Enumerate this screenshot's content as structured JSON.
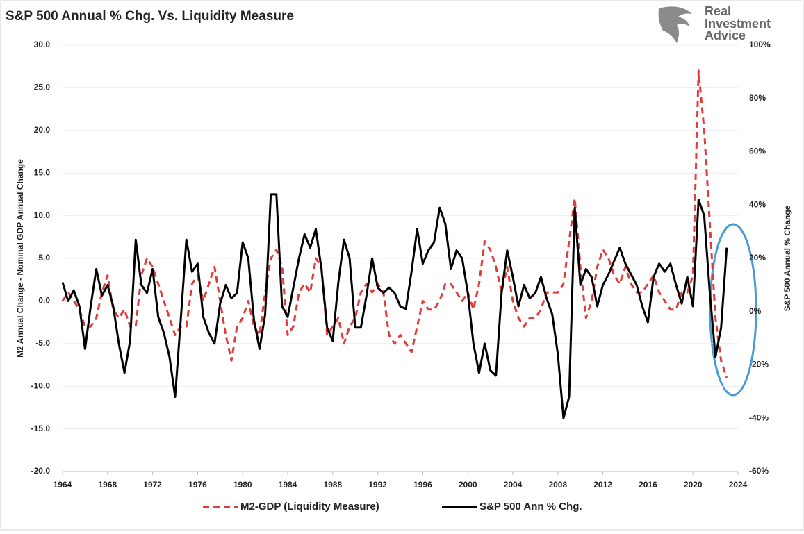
{
  "chart_data": {
    "type": "line",
    "title": "S&P 500 Annual % Chg. Vs. Liquidity Measure",
    "logo": [
      "Real",
      "Investment",
      "Advice"
    ],
    "y_label": "M2 Annual Change - Nominal GDP Annual Change",
    "y2_label": "S&P 500 Annual % Change",
    "x": [
      1964,
      1964.5,
      1965,
      1965.5,
      1966,
      1966.5,
      1967,
      1967.5,
      1968,
      1968.5,
      1969,
      1969.5,
      1970,
      1970.5,
      1971,
      1971.5,
      1972,
      1972.5,
      1973,
      1973.5,
      1974,
      1974.5,
      1975,
      1975.5,
      1976,
      1976.5,
      1977,
      1977.5,
      1978,
      1978.5,
      1979,
      1979.5,
      1980,
      1980.5,
      1981,
      1981.5,
      1982,
      1982.5,
      1983,
      1983.5,
      1984,
      1984.5,
      1985,
      1985.5,
      1986,
      1986.5,
      1987,
      1987.5,
      1988,
      1988.5,
      1989,
      1989.5,
      1990,
      1990.5,
      1991,
      1991.5,
      1992,
      1992.5,
      1993,
      1993.5,
      1994,
      1994.5,
      1995,
      1995.5,
      1996,
      1996.5,
      1997,
      1997.5,
      1998,
      1998.5,
      1999,
      1999.5,
      2000,
      2000.5,
      2001,
      2001.5,
      2002,
      2002.5,
      2003,
      2003.5,
      2004,
      2004.5,
      2005,
      2005.5,
      2006,
      2006.5,
      2007,
      2007.5,
      2008,
      2008.5,
      2009,
      2009.5,
      2010,
      2010.5,
      2011,
      2011.5,
      2012,
      2012.5,
      2013,
      2013.5,
      2014,
      2014.5,
      2015,
      2015.5,
      2016,
      2016.5,
      2017,
      2017.5,
      2018,
      2018.5,
      2019,
      2019.5,
      2020,
      2020.5,
      2021,
      2021.5,
      2022,
      2022.5,
      2023
    ],
    "xlim": [
      1964,
      2024
    ],
    "xticks": [
      1964,
      1968,
      1972,
      1976,
      1980,
      1984,
      1988,
      1992,
      1996,
      2000,
      2004,
      2008,
      2012,
      2016,
      2020,
      2024
    ],
    "ylim": [
      -20,
      30
    ],
    "yticks": [
      {
        "value": -20,
        "label": "-20.0"
      },
      {
        "value": -15,
        "label": "-15.0"
      },
      {
        "value": -10,
        "label": "-10.0"
      },
      {
        "value": -5,
        "label": "-5.0"
      },
      {
        "value": 0,
        "label": "0.0"
      },
      {
        "value": 5,
        "label": "5.0"
      },
      {
        "value": 10,
        "label": "10.0"
      },
      {
        "value": 15,
        "label": "15.0"
      },
      {
        "value": 20,
        "label": "20.0"
      },
      {
        "value": 25,
        "label": "25.0"
      },
      {
        "value": 30,
        "label": "30.0"
      }
    ],
    "y2lim": [
      -60,
      100
    ],
    "y2ticks": [
      {
        "value": -60,
        "label": "-60%"
      },
      {
        "value": -40,
        "label": "-40%"
      },
      {
        "value": -20,
        "label": "-20%"
      },
      {
        "value": 0,
        "label": "0%"
      },
      {
        "value": 20,
        "label": "20%"
      },
      {
        "value": 40,
        "label": "40%"
      },
      {
        "value": 60,
        "label": "60%"
      },
      {
        "value": 80,
        "label": "80%"
      },
      {
        "value": 100,
        "label": "100%"
      }
    ],
    "grid": true,
    "series": [
      {
        "name": "M2-GDP (Liquidity Measure)",
        "color": "#e03c3c",
        "dashed": true,
        "values": [
          0,
          1,
          0,
          -1,
          -3,
          -3,
          -2,
          1,
          3,
          -1,
          -2,
          -1,
          -3,
          -3,
          3,
          5,
          4,
          2,
          0,
          -2,
          -4,
          -3,
          -3,
          2,
          3,
          0,
          2,
          4,
          0,
          -4,
          -7,
          -3,
          -2,
          0,
          -3,
          -4,
          1,
          5,
          6,
          4,
          -4,
          -3,
          1,
          2,
          1,
          5,
          4,
          -4,
          -3,
          -2,
          -5,
          -3,
          -2,
          1,
          2,
          1,
          2,
          1,
          -4,
          -5,
          -4,
          -5,
          -6,
          -3,
          0,
          -1,
          -1,
          0,
          2,
          2,
          1,
          0,
          1,
          -1,
          2,
          7,
          6,
          4,
          1,
          4,
          0,
          -2,
          -3,
          -2,
          -2,
          -1,
          1,
          1,
          1,
          2,
          7,
          12,
          4,
          -2,
          0,
          4,
          6,
          5,
          3,
          2,
          4,
          2,
          1,
          1,
          2,
          3,
          1,
          0,
          -1,
          -1,
          1,
          1,
          3,
          27,
          20,
          9,
          -2,
          -7,
          -9
        ]
      },
      {
        "name": "S&P 500 Ann % Chg.",
        "color": "#000000",
        "axis": "y2",
        "values": [
          11,
          4,
          8,
          2,
          -14,
          2,
          16,
          6,
          10,
          2,
          -12,
          -23,
          -11,
          27,
          10,
          7,
          16,
          -2,
          -8,
          -17,
          -32,
          -3,
          27,
          15,
          18,
          -2,
          -8,
          -12,
          3,
          10,
          5,
          7,
          26,
          20,
          -3,
          -14,
          -1,
          44,
          44,
          2,
          -2,
          9,
          20,
          29,
          24,
          31,
          16,
          -6,
          -11,
          11,
          27,
          20,
          -6,
          -6,
          6,
          20,
          9,
          7,
          9,
          7,
          2,
          1,
          15,
          31,
          18,
          23,
          26,
          39,
          33,
          16,
          23,
          20,
          7,
          -12,
          -23,
          -12,
          -22,
          -24,
          7,
          23,
          13,
          2,
          10,
          5,
          7,
          13,
          5,
          -1,
          -16,
          -40,
          -32,
          39,
          10,
          16,
          13,
          2,
          10,
          14,
          19,
          24,
          18,
          14,
          10,
          2,
          -4,
          13,
          18,
          15,
          18,
          10,
          3,
          13,
          2,
          42,
          36,
          7,
          -17,
          -6,
          24
        ]
      }
    ]
  }
}
